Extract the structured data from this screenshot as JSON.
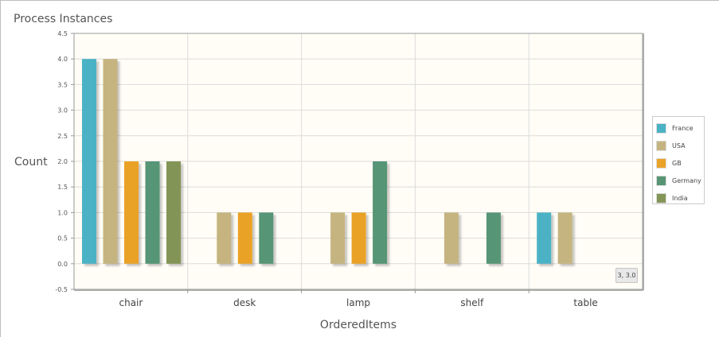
{
  "panel": {
    "title": "Process Instances"
  },
  "chart_data": {
    "type": "bar",
    "title": "",
    "xlabel": "OrderedItems",
    "ylabel": "Count",
    "ylim": [
      -0.5,
      4.5
    ],
    "yticks": [
      "4.5",
      "4.0",
      "3.5",
      "3.0",
      "2.5",
      "2.0",
      "1.5",
      "1.0",
      "0.5",
      "0.0",
      "-0.5"
    ],
    "categories": [
      "chair",
      "desk",
      "lamp",
      "shelf",
      "table"
    ],
    "series": [
      {
        "name": "France",
        "color": "#4bb2c5",
        "values": [
          4,
          null,
          null,
          null,
          1
        ]
      },
      {
        "name": "USA",
        "color": "#c5b47f",
        "values": [
          4,
          1,
          1,
          1,
          1
        ]
      },
      {
        "name": "GB",
        "color": "#eaa228",
        "values": [
          2,
          1,
          1,
          null,
          null
        ]
      },
      {
        "name": "Germany",
        "color": "#579575",
        "values": [
          2,
          1,
          2,
          1,
          null
        ]
      },
      {
        "name": "India",
        "color": "#839557",
        "values": [
          2,
          null,
          null,
          null,
          null
        ]
      }
    ],
    "grid": true,
    "legend_position": "right",
    "plot_background": "#fffdf6"
  },
  "tooltip": {
    "text": "3, 3.0"
  }
}
